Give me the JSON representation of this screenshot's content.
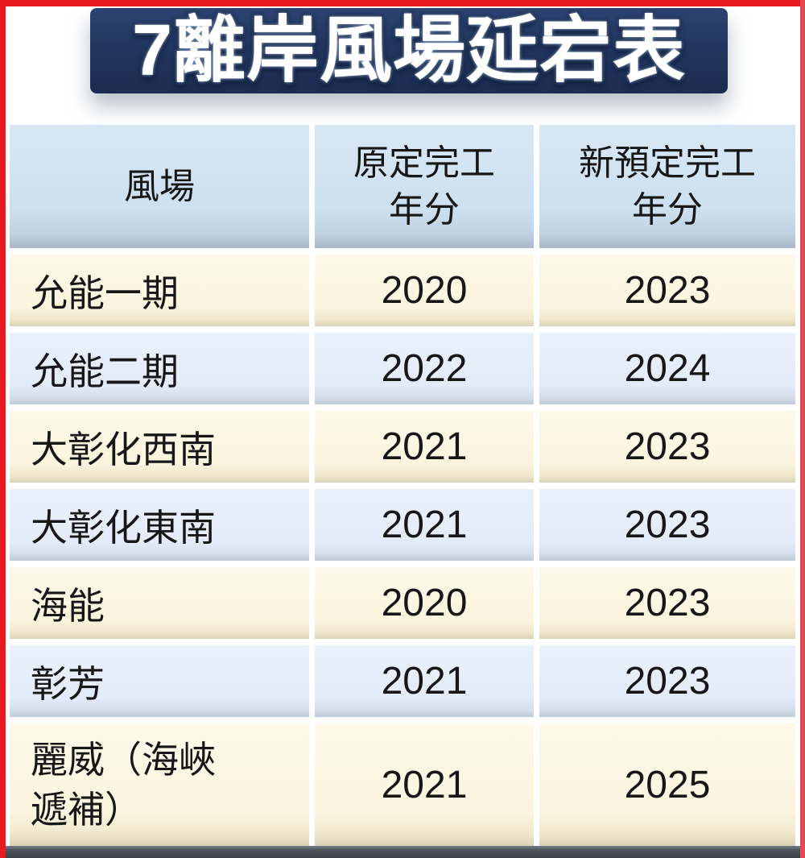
{
  "title_banner": {
    "title": "7離岸風場延宕表"
  },
  "colors": {
    "frame_red": "#e8191f",
    "banner_navy": "#22365f",
    "header_blue": "#cde0f0",
    "row_cream": "#fbf4de",
    "row_blue": "#e2ebf7",
    "text": "#171717",
    "title_text": "#ffffff"
  },
  "table": {
    "header": {
      "farm": "風場",
      "original_line1": "原定完工",
      "original_line2": "年分",
      "new_line1": "新預定完工",
      "new_line2": "年分"
    },
    "rows": [
      {
        "name": "允能一期",
        "original": "2020",
        "new": "2023"
      },
      {
        "name": "允能二期",
        "original": "2022",
        "new": "2024"
      },
      {
        "name": "大彰化西南",
        "original": "2021",
        "new": "2023"
      },
      {
        "name": "大彰化東南",
        "original": "2021",
        "new": "2023"
      },
      {
        "name": "海能",
        "original": "2020",
        "new": "2023"
      },
      {
        "name": "彰芳",
        "original": "2021",
        "new": "2023"
      },
      {
        "name": "麗威（海峽遞補）",
        "name_lines": [
          "麗威（海峽",
          "遞補）"
        ],
        "original": "2021",
        "new": "2025"
      }
    ]
  },
  "chart_data": {
    "type": "table",
    "title": "7離岸風場延宕表",
    "columns": [
      "風場",
      "原定完工年分",
      "新預定完工年分"
    ],
    "rows": [
      [
        "允能一期",
        2020,
        2023
      ],
      [
        "允能二期",
        2022,
        2024
      ],
      [
        "大彰化西南",
        2021,
        2023
      ],
      [
        "大彰化東南",
        2021,
        2023
      ],
      [
        "海能",
        2020,
        2023
      ],
      [
        "彰芳",
        2021,
        2023
      ],
      [
        "麗威（海峽遞補）",
        2021,
        2025
      ]
    ]
  }
}
